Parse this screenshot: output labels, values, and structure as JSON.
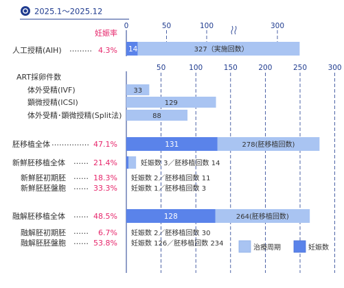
{
  "header": {
    "period": "2025.1〜2025.12",
    "rate_header": "妊娠率"
  },
  "legend": {
    "cycles": "治療周期",
    "pregnancies": "妊娠数"
  },
  "colors": {
    "cycle_bar": "#a9c4f2",
    "pregnancy_bar": "#5a83ea",
    "axis": "#1f3b8f",
    "rate": "#e6266b"
  },
  "chart_data": [
    {
      "type": "bar",
      "orientation": "horizontal",
      "xlim": [
        0,
        450
      ],
      "ticks": [
        0,
        50,
        100,
        300,
        400
      ],
      "axis_break": "between 100 and 300",
      "rows": [
        {
          "label": "人工授精(AIH)",
          "leader": "………",
          "rate": "4.3%",
          "pregnancies": 14,
          "cycles": 327,
          "cycles_label": "327（実施回数）"
        }
      ]
    },
    {
      "type": "bar",
      "orientation": "horizontal",
      "title": "ART採卵件数",
      "xlim": [
        0,
        300
      ],
      "ticks": [
        50,
        100,
        150,
        200,
        250,
        300
      ],
      "rows": [
        {
          "label": "体外受精(IVF)",
          "cycles": 33,
          "cycles_label": "33"
        },
        {
          "label": "顕微授精(ICSI)",
          "cycles": 129,
          "cycles_label": "129"
        },
        {
          "label": "体外受精･顕微授精(Split法)",
          "cycles": 88,
          "cycles_label": "88"
        }
      ]
    },
    {
      "type": "bar",
      "orientation": "horizontal",
      "xlim": [
        0,
        300
      ],
      "rows": [
        {
          "label": "胚移植全体",
          "leader": "……………",
          "rate": "47.1%",
          "pregnancies": 131,
          "pregnancies_label": "131",
          "cycles": 278,
          "cycles_label": "278(胚移植回数)"
        },
        {
          "label": "新鮮胚移植全体",
          "leader": "……",
          "rate": "21.4%",
          "pregnancies": 3,
          "cycles": 14,
          "note": "妊娠数 3／胚移植回数 14"
        },
        {
          "label": "新鮮胚初期胚",
          "leader": "……",
          "rate": "18.3%",
          "pregnancies": 2,
          "cycles": 11,
          "note": "妊娠数 2／胚移植回数 11"
        },
        {
          "label": "新鮮胚胚盤胞",
          "leader": "……",
          "rate": "33.3%",
          "pregnancies": 1,
          "cycles": 3,
          "note": "妊娠数  1／胚移植回数  3"
        },
        {
          "label": "融解胚移植全体",
          "leader": "……",
          "rate": "48.5%",
          "pregnancies": 128,
          "pregnancies_label": "128",
          "cycles": 264,
          "cycles_label": "264(胚移植回数)"
        },
        {
          "label": "融解胚初期胚",
          "leader": "……",
          "rate": "6.7%",
          "pregnancies": 2,
          "cycles": 30,
          "note": "妊娠数 2／胚移植回数  30"
        },
        {
          "label": "融解胚胚盤胞",
          "leader": "……",
          "rate": "53.8%",
          "pregnancies": 126,
          "cycles": 234,
          "note": "妊娠数 126／胚移植回数 234"
        }
      ]
    }
  ]
}
